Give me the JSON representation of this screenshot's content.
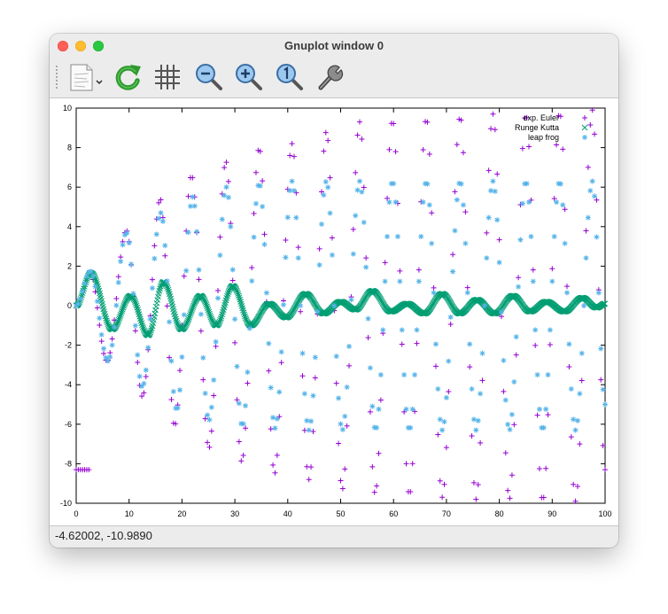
{
  "window": {
    "title": "Gnuplot window 0"
  },
  "toolbar": {
    "buttons": [
      {
        "name": "copy-export-menu",
        "icon": "document-icon"
      },
      {
        "name": "replot",
        "icon": "refresh-icon"
      },
      {
        "name": "toggle-grid",
        "icon": "grid-icon"
      },
      {
        "name": "zoom-out",
        "icon": "zoom-out-icon"
      },
      {
        "name": "zoom-in",
        "icon": "zoom-in-icon"
      },
      {
        "name": "unzoom",
        "icon": "zoom-reset-icon"
      },
      {
        "name": "settings",
        "icon": "wrench-icon"
      }
    ]
  },
  "status": {
    "coordinates": "-4.62002, -10.9890"
  },
  "chart_data": {
    "type": "scatter",
    "title": "",
    "xlabel": "",
    "ylabel": "",
    "xlim": [
      0,
      100
    ],
    "ylim": [
      -10,
      10
    ],
    "xticks": [
      0,
      10,
      20,
      30,
      40,
      50,
      60,
      70,
      80,
      90,
      100
    ],
    "yticks": [
      -10,
      -8,
      -6,
      -4,
      -2,
      0,
      2,
      4,
      6,
      8,
      10
    ],
    "legend_position": "top-right",
    "grid": false,
    "series": [
      {
        "name": "exp. Euler",
        "marker": "+",
        "color": "#9400d3",
        "x_range": [
          0,
          100
        ],
        "x_step": 0.4,
        "peaks": [
          [
            2.6,
            1.7
          ],
          [
            5.8,
            -2.8
          ],
          [
            9.5,
            3.8
          ],
          [
            12.5,
            -4.6
          ],
          [
            15.9,
            5.4
          ],
          [
            18.6,
            -6.1
          ],
          [
            21.8,
            6.6
          ],
          [
            25.1,
            -7.2
          ],
          [
            28.3,
            7.3
          ],
          [
            31.3,
            -7.9
          ],
          [
            34.6,
            8.0
          ],
          [
            37.5,
            -8.5
          ],
          [
            40.8,
            8.2
          ],
          [
            44.0,
            -8.8
          ],
          [
            47.3,
            8.8
          ],
          [
            50.3,
            -9.3
          ],
          [
            53.6,
            9.3
          ],
          [
            56.5,
            -9.5
          ],
          [
            59.8,
            9.4
          ],
          [
            63.0,
            -9.6
          ],
          [
            66.2,
            9.5
          ],
          [
            69.2,
            -9.7
          ],
          [
            72.6,
            9.6
          ],
          [
            75.6,
            -9.8
          ],
          [
            78.8,
            9.7
          ],
          [
            81.9,
            -9.8
          ],
          [
            85.0,
            9.7
          ],
          [
            88.2,
            -9.9
          ],
          [
            91.4,
            9.8
          ],
          [
            94.4,
            -9.9
          ],
          [
            97.6,
            9.9
          ],
          [
            100.0,
            -8.3
          ]
        ]
      },
      {
        "name": "Runge Kutta",
        "marker": "x",
        "color": "#009e73",
        "x_range": [
          0,
          100
        ],
        "x_step": 0.12,
        "peaks": [
          [
            0.0,
            0.0
          ],
          [
            2.8,
            1.65
          ],
          [
            6.8,
            -1.2
          ],
          [
            10.3,
            0.5
          ],
          [
            13.6,
            -1.5
          ],
          [
            16.5,
            1.2
          ],
          [
            19.9,
            -1.2
          ],
          [
            23.5,
            0.5
          ],
          [
            26.5,
            -1.0
          ],
          [
            29.6,
            1.0
          ],
          [
            33.0,
            -1.0
          ],
          [
            36.5,
            0.1
          ],
          [
            39.7,
            -0.6
          ],
          [
            43.4,
            0.6
          ],
          [
            46.8,
            -0.4
          ],
          [
            50.0,
            0.2
          ],
          [
            52.8,
            -0.2
          ],
          [
            56.0,
            0.75
          ],
          [
            59.5,
            -0.3
          ],
          [
            62.6,
            0.1
          ],
          [
            65.8,
            -0.4
          ],
          [
            69.2,
            0.6
          ],
          [
            72.5,
            -0.4
          ],
          [
            75.8,
            0.3
          ],
          [
            79.1,
            -0.4
          ],
          [
            82.6,
            0.5
          ],
          [
            85.8,
            -0.3
          ],
          [
            88.9,
            0.2
          ],
          [
            92.3,
            -0.3
          ],
          [
            95.7,
            0.4
          ],
          [
            98.4,
            -0.1
          ],
          [
            100.0,
            0.1
          ]
        ]
      },
      {
        "name": "leap frog",
        "marker": "*",
        "color": "#56b4e9",
        "x_range": [
          0,
          100
        ],
        "x_step": 0.4,
        "peaks": [
          [
            0.0,
            0.0
          ],
          [
            2.7,
            1.75
          ],
          [
            6.0,
            -2.8
          ],
          [
            9.5,
            3.7
          ],
          [
            12.5,
            -4.1
          ],
          [
            16.0,
            4.7
          ],
          [
            19.0,
            -5.3
          ],
          [
            22.0,
            5.5
          ],
          [
            25.1,
            -5.8
          ],
          [
            28.4,
            6.0
          ],
          [
            31.4,
            -6.1
          ],
          [
            34.6,
            6.2
          ],
          [
            37.6,
            -6.2
          ],
          [
            40.8,
            6.3
          ],
          [
            44.0,
            -6.3
          ],
          [
            47.3,
            6.3
          ],
          [
            50.3,
            -6.3
          ],
          [
            53.6,
            6.3
          ],
          [
            56.6,
            -6.3
          ],
          [
            59.8,
            6.3
          ],
          [
            63.0,
            -6.3
          ],
          [
            66.2,
            6.3
          ],
          [
            69.2,
            -6.3
          ],
          [
            72.6,
            6.3
          ],
          [
            75.6,
            -6.3
          ],
          [
            78.8,
            6.3
          ],
          [
            81.9,
            -6.3
          ],
          [
            85.0,
            6.3
          ],
          [
            88.2,
            -6.3
          ],
          [
            91.4,
            6.3
          ],
          [
            94.4,
            -6.3
          ],
          [
            97.6,
            6.3
          ],
          [
            100.0,
            -5.0
          ]
        ]
      }
    ]
  }
}
